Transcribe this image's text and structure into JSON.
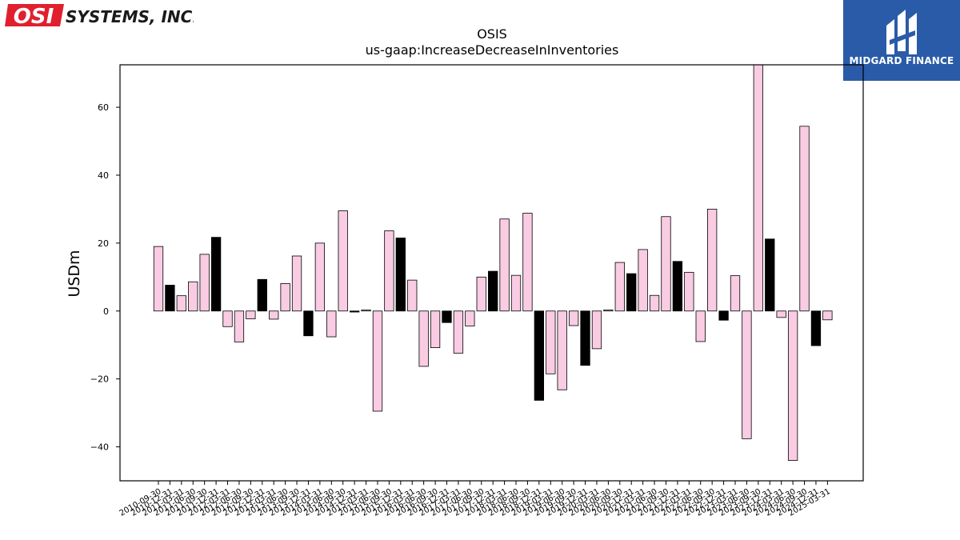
{
  "branding": {
    "left_logo_text": "SYSTEMS, INC.",
    "left_logo_mark": "OSI",
    "right_logo_text": "MIDGARD FINANCE"
  },
  "colors": {
    "bar_default": "#f9cce3",
    "bar_highlight": "#000000",
    "bar_edge": "#000000",
    "osi_red": "#e0202e",
    "midgard_blue": "#2a5ba8"
  },
  "chart_data": {
    "type": "bar",
    "title": "OSIS",
    "subtitle": "us-gaap:IncreaseDecreaseInInventories",
    "xlabel": "",
    "ylabel": "USDm",
    "ylim": [
      -50,
      72.5
    ],
    "yticks": [
      -40,
      -20,
      0,
      20,
      40,
      60
    ],
    "grid": false,
    "categories": [
      "2010-09-30",
      "2010-12-31",
      "2011-03-31",
      "2011-06-30",
      "2011-09-30",
      "2011-12-31",
      "2012-03-31",
      "2012-06-30",
      "2012-09-30",
      "2012-12-31",
      "2013-03-31",
      "2013-06-30",
      "2013-09-30",
      "2013-12-31",
      "2014-03-31",
      "2014-06-30",
      "2014-09-30",
      "2014-12-31",
      "2015-03-31",
      "2015-06-30",
      "2015-09-30",
      "2015-12-31",
      "2016-03-31",
      "2016-06-30",
      "2016-09-30",
      "2016-12-31",
      "2017-03-31",
      "2017-06-30",
      "2017-09-30",
      "2017-12-31",
      "2018-03-31",
      "2018-06-30",
      "2018-09-30",
      "2018-12-31",
      "2019-03-31",
      "2019-06-30",
      "2019-09-30",
      "2019-12-31",
      "2020-03-31",
      "2020-06-30",
      "2020-09-30",
      "2020-12-31",
      "2021-03-31",
      "2021-06-30",
      "2021-09-30",
      "2021-12-31",
      "2022-03-31",
      "2022-06-30",
      "2022-09-30",
      "2022-12-31",
      "2023-03-31",
      "2023-06-30",
      "2023-09-30",
      "2023-12-31",
      "2024-03-31",
      "2024-06-30",
      "2024-09-30",
      "2024-12-31",
      "2025-03-31"
    ],
    "values": [
      19.0,
      7.6,
      4.5,
      8.6,
      16.7,
      21.7,
      -4.6,
      -9.1,
      -2.3,
      9.3,
      -2.4,
      8.1,
      16.2,
      -7.3,
      20.0,
      -7.6,
      29.5,
      -0.3,
      0.3,
      -29.5,
      23.6,
      21.5,
      9.1,
      -16.3,
      -10.8,
      -3.4,
      -12.4,
      -4.4,
      10.0,
      11.7,
      27.1,
      10.5,
      28.8,
      -26.3,
      -18.5,
      -23.2,
      -4.3,
      -16.0,
      -11.1,
      0.3,
      14.3,
      11.0,
      18.1,
      4.6,
      27.8,
      14.6,
      11.4,
      -9.0,
      30.0,
      -2.7,
      10.4,
      -37.6,
      75.0,
      21.2,
      -1.9,
      -44.0,
      54.4,
      -10.2,
      -2.6
    ],
    "highlight_indices": [
      1,
      5,
      9,
      13,
      17,
      21,
      25,
      29,
      33,
      37,
      41,
      45,
      49,
      53,
      57
    ]
  }
}
